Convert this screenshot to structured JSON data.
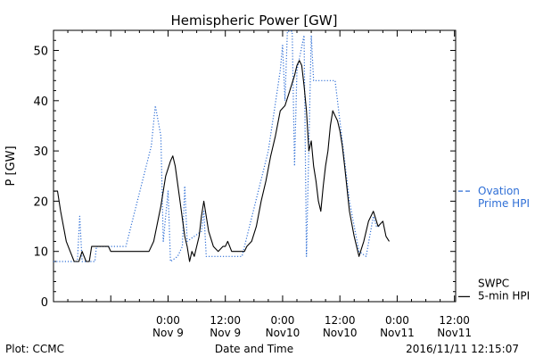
{
  "chart_data": {
    "type": "line",
    "title": "Hemispheric Power [GW]",
    "xlabel": "Date and Time",
    "ylabel": "P [GW]",
    "ylim": [
      0,
      54
    ],
    "yticks": [
      0,
      10,
      20,
      30,
      40,
      50
    ],
    "xlim": [
      "2016-11-08T00:00",
      "2016-11-11T12:15"
    ],
    "x_tick_labels": [
      {
        "time": "2016-11-09T00:00",
        "line1": "0:00",
        "line2": "Nov 9"
      },
      {
        "time": "2016-11-09T12:00",
        "line1": "12:00",
        "line2": "Nov 9"
      },
      {
        "time": "2016-11-10T00:00",
        "line1": "0:00",
        "line2": "Nov10"
      },
      {
        "time": "2016-11-10T12:00",
        "line1": "12:00",
        "line2": "Nov10"
      },
      {
        "time": "2016-11-11T00:00",
        "line1": "0:00",
        "line2": "Nov11"
      },
      {
        "time": "2016-11-11T12:00",
        "line1": "12:00",
        "line2": "Nov11"
      }
    ],
    "grid": false,
    "legend_position": "right",
    "series": [
      {
        "name": "Ovation Prime HPI",
        "legend_lines": [
          "Ovation",
          "Prime HPI"
        ],
        "color": "#2f6fd6",
        "style": "dotted",
        "points": [
          [
            "2016-11-08T00:00",
            8
          ],
          [
            "2016-11-08T05:00",
            8
          ],
          [
            "2016-11-08T05:30",
            17
          ],
          [
            "2016-11-08T06:00",
            8
          ],
          [
            "2016-11-08T08:40",
            8
          ],
          [
            "2016-11-08T09:00",
            11
          ],
          [
            "2016-11-08T15:10",
            11
          ],
          [
            "2016-11-08T20:30",
            31
          ],
          [
            "2016-11-08T21:20",
            39
          ],
          [
            "2016-11-08T22:30",
            33
          ],
          [
            "2016-11-08T23:00",
            12
          ],
          [
            "2016-11-09T00:00",
            22
          ],
          [
            "2016-11-09T00:30",
            8
          ],
          [
            "2016-11-09T02:00",
            9
          ],
          [
            "2016-11-09T03:00",
            11
          ],
          [
            "2016-11-09T03:30",
            23
          ],
          [
            "2016-11-09T04:00",
            12
          ],
          [
            "2016-11-09T07:00",
            14
          ],
          [
            "2016-11-09T07:30",
            18
          ],
          [
            "2016-11-09T08:00",
            9
          ],
          [
            "2016-11-09T15:30",
            9
          ],
          [
            "2016-11-09T21:00",
            30
          ],
          [
            "2016-11-09T23:30",
            46
          ],
          [
            "2016-11-10T00:00",
            51
          ],
          [
            "2016-11-10T00:30",
            40
          ],
          [
            "2016-11-10T01:00",
            55
          ],
          [
            "2016-11-10T02:00",
            55
          ],
          [
            "2016-11-10T02:30",
            27
          ],
          [
            "2016-11-10T03:00",
            46
          ],
          [
            "2016-11-10T04:30",
            53
          ],
          [
            "2016-11-10T05:00",
            9
          ],
          [
            "2016-11-10T06:00",
            53
          ],
          [
            "2016-11-10T06:30",
            44
          ],
          [
            "2016-11-10T11:00",
            44
          ],
          [
            "2016-11-10T14:00",
            20
          ],
          [
            "2016-11-10T16:00",
            10
          ],
          [
            "2016-11-10T17:30",
            9
          ],
          [
            "2016-11-10T19:00",
            17
          ],
          [
            "2016-11-10T19:40",
            15
          ],
          [
            "2016-11-10T20:15",
            15
          ]
        ]
      },
      {
        "name": "SWPC 5-min HPI",
        "legend_lines": [
          "SWPC",
          "5-min HPI"
        ],
        "color": "#000000",
        "style": "solid",
        "points": [
          [
            "2016-11-08T00:00",
            22
          ],
          [
            "2016-11-08T00:50",
            22
          ],
          [
            "2016-11-08T01:30",
            18
          ],
          [
            "2016-11-08T02:40",
            12
          ],
          [
            "2016-11-08T03:30",
            10
          ],
          [
            "2016-11-08T04:20",
            8
          ],
          [
            "2016-11-08T05:20",
            8
          ],
          [
            "2016-11-08T06:00",
            10
          ],
          [
            "2016-11-08T06:50",
            8
          ],
          [
            "2016-11-08T07:30",
            8
          ],
          [
            "2016-11-08T08:00",
            11
          ],
          [
            "2016-11-08T11:30",
            11
          ],
          [
            "2016-11-08T12:00",
            10
          ],
          [
            "2016-11-08T18:00",
            10
          ],
          [
            "2016-11-08T20:00",
            10
          ],
          [
            "2016-11-08T21:00",
            12
          ],
          [
            "2016-11-08T22:30",
            19
          ],
          [
            "2016-11-08T23:30",
            25
          ],
          [
            "2016-11-09T00:30",
            28
          ],
          [
            "2016-11-09T01:00",
            29
          ],
          [
            "2016-11-09T01:30",
            27
          ],
          [
            "2016-11-09T02:30",
            20
          ],
          [
            "2016-11-09T03:30",
            13
          ],
          [
            "2016-11-09T04:00",
            11
          ],
          [
            "2016-11-09T04:30",
            8
          ],
          [
            "2016-11-09T05:00",
            10
          ],
          [
            "2016-11-09T05:30",
            9
          ],
          [
            "2016-11-09T06:30",
            13
          ],
          [
            "2016-11-09T07:00",
            17
          ],
          [
            "2016-11-09T07:30",
            20
          ],
          [
            "2016-11-09T08:30",
            14
          ],
          [
            "2016-11-09T09:30",
            11
          ],
          [
            "2016-11-09T10:30",
            10
          ],
          [
            "2016-11-09T11:30",
            11
          ],
          [
            "2016-11-09T12:00",
            11
          ],
          [
            "2016-11-09T12:30",
            12
          ],
          [
            "2016-11-09T13:20",
            10
          ],
          [
            "2016-11-09T14:00",
            10
          ],
          [
            "2016-11-09T16:00",
            10
          ],
          [
            "2016-11-09T16:30",
            11
          ],
          [
            "2016-11-09T17:30",
            12
          ],
          [
            "2016-11-09T18:30",
            15
          ],
          [
            "2016-11-09T19:30",
            20
          ],
          [
            "2016-11-09T20:30",
            24
          ],
          [
            "2016-11-09T21:30",
            29
          ],
          [
            "2016-11-09T22:30",
            33
          ],
          [
            "2016-11-09T23:30",
            38
          ],
          [
            "2016-11-10T00:30",
            39
          ],
          [
            "2016-11-10T01:30",
            42
          ],
          [
            "2016-11-10T02:30",
            45
          ],
          [
            "2016-11-10T03:00",
            47
          ],
          [
            "2016-11-10T03:30",
            48
          ],
          [
            "2016-11-10T04:00",
            47
          ],
          [
            "2016-11-10T04:30",
            43
          ],
          [
            "2016-11-10T05:00",
            38
          ],
          [
            "2016-11-10T05:30",
            30
          ],
          [
            "2016-11-10T06:00",
            32
          ],
          [
            "2016-11-10T06:30",
            27
          ],
          [
            "2016-11-10T07:00",
            24
          ],
          [
            "2016-11-10T07:30",
            20
          ],
          [
            "2016-11-10T08:00",
            18
          ],
          [
            "2016-11-10T08:30",
            23
          ],
          [
            "2016-11-10T09:00",
            27
          ],
          [
            "2016-11-10T09:30",
            30
          ],
          [
            "2016-11-10T10:00",
            35
          ],
          [
            "2016-11-10T10:30",
            38
          ],
          [
            "2016-11-10T11:00",
            37
          ],
          [
            "2016-11-10T11:30",
            36
          ],
          [
            "2016-11-10T12:00",
            34
          ],
          [
            "2016-11-10T12:30",
            31
          ],
          [
            "2016-11-10T13:00",
            27
          ],
          [
            "2016-11-10T14:00",
            18
          ],
          [
            "2016-11-10T15:00",
            13
          ],
          [
            "2016-11-10T16:00",
            9
          ],
          [
            "2016-11-10T17:00",
            12
          ],
          [
            "2016-11-10T18:00",
            16
          ],
          [
            "2016-11-10T19:00",
            18
          ],
          [
            "2016-11-10T20:00",
            15
          ],
          [
            "2016-11-10T21:00",
            16
          ],
          [
            "2016-11-10T21:40",
            13
          ],
          [
            "2016-11-10T22:20",
            12
          ]
        ]
      }
    ]
  },
  "footer": {
    "plot_label": "Plot: CCMC",
    "xlabel": "Date and Time",
    "timestamp": "2016/11/11 12:15:07"
  }
}
